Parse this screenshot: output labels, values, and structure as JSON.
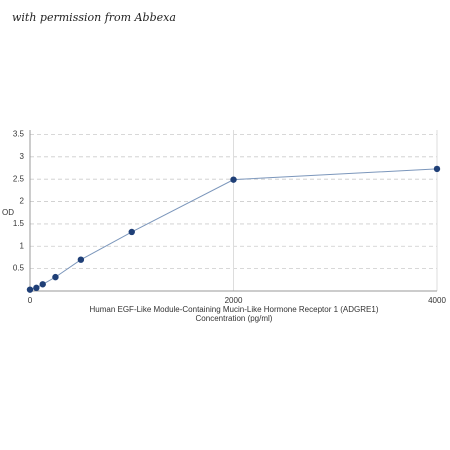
{
  "watermark": "with permission from Abbexa",
  "chart_data": {
    "type": "line",
    "xlabel": [
      "Human EGF-Like Module-Containing Mucin-Like Hormone Receptor 1 (ADGRE1)",
      "Concentration (pg/ml)"
    ],
    "ylabel": "OD",
    "x": [
      0,
      62.5,
      125,
      250,
      500,
      1000,
      2000,
      4000
    ],
    "series": [
      {
        "color": "#1f3f77",
        "values": [
          0.03,
          0.07,
          0.15,
          0.31,
          0.7,
          1.32,
          2.49,
          2.73
        ]
      }
    ],
    "xlim": [
      0,
      4000
    ],
    "xticks": [
      0,
      2000,
      4000
    ],
    "ylim": [
      0,
      3.6
    ],
    "yticks": [
      0.5,
      1,
      1.5,
      2,
      2.5,
      3,
      3.5
    ],
    "grid": true
  }
}
